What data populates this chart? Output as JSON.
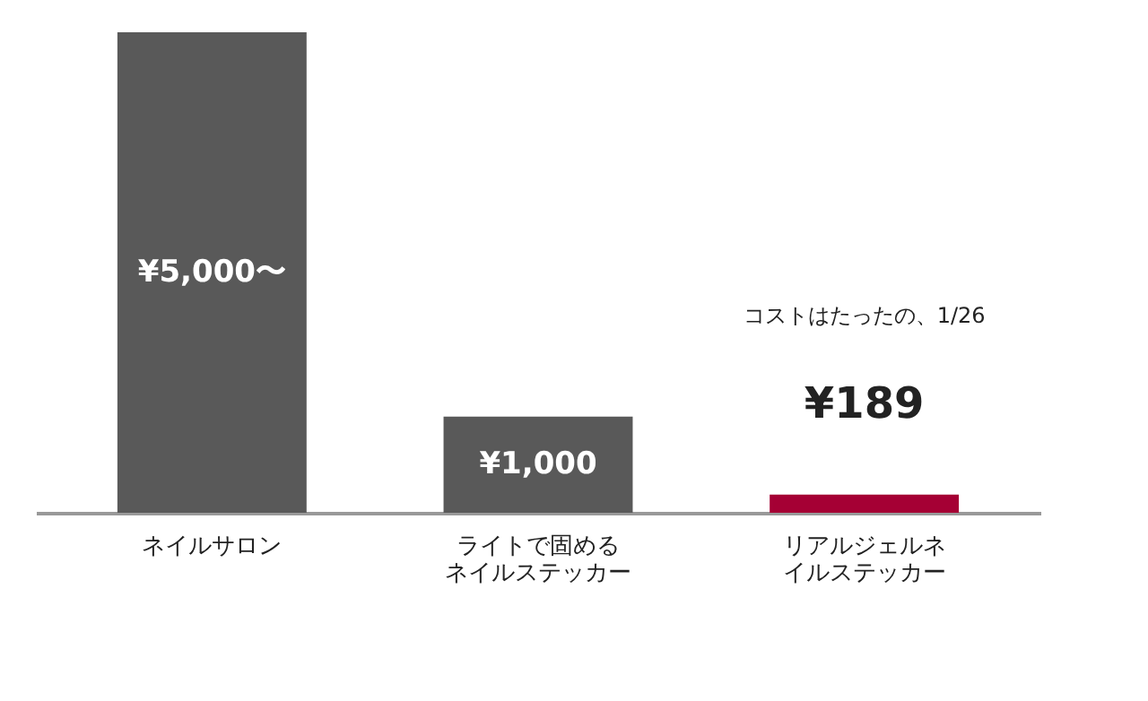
{
  "chart_data": {
    "type": "bar",
    "categories": [
      "ネイルサロン",
      "ライトで固めるネイルステッカー",
      "リアルジェルネイルステッカー"
    ],
    "values": [
      5000,
      1000,
      189
    ],
    "colors": [
      "#595959",
      "#595959",
      "#a50034"
    ],
    "value_labels": [
      "¥5,000〜",
      "¥1,000",
      "¥189"
    ],
    "annotations": [
      "コストはたったの、1/26"
    ]
  }
}
